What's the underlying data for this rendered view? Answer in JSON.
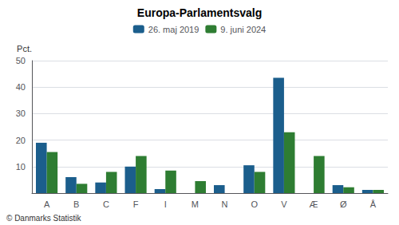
{
  "chart_data": {
    "type": "bar",
    "title": "Europa-Parlamentsvalg",
    "ylabel": "Pct.",
    "footer": "© Danmarks Statistik",
    "categories": [
      "A",
      "B",
      "C",
      "F",
      "I",
      "M",
      "N",
      "O",
      "V",
      "Æ",
      "Ø",
      "Å"
    ],
    "series": [
      {
        "name": "26. maj 2019",
        "color": "#1b5e8c",
        "values": [
          19.0,
          6.0,
          4.0,
          10.0,
          1.5,
          0.0,
          3.0,
          10.5,
          43.5,
          0.0,
          3.0,
          1.2
        ]
      },
      {
        "name": "9. juni 2024",
        "color": "#2e7d32",
        "values": [
          15.5,
          3.5,
          8.0,
          14.0,
          8.5,
          4.5,
          0.0,
          8.0,
          23.0,
          14.0,
          2.2,
          1.2
        ]
      }
    ],
    "ylim": [
      0,
      50
    ],
    "yticks": [
      10,
      20,
      30,
      40,
      50
    ],
    "grid": true,
    "legend": "top"
  }
}
